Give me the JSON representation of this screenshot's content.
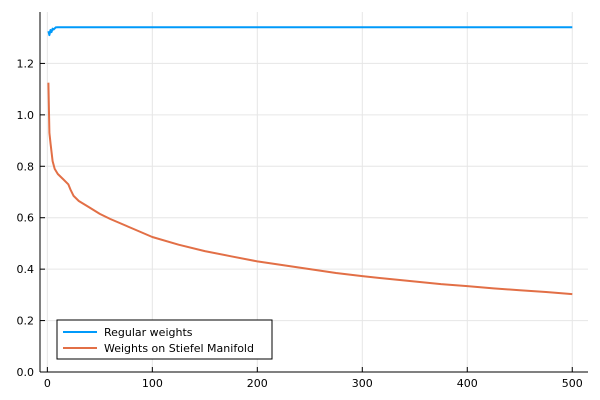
{
  "chart_data": {
    "type": "line",
    "title": "",
    "xlabel": "",
    "ylabel": "",
    "xlim": [
      -7,
      515
    ],
    "ylim": [
      0,
      1.4
    ],
    "xticks": [
      0,
      100,
      200,
      300,
      400,
      500
    ],
    "yticks": [
      0.0,
      0.2,
      0.4,
      0.6,
      0.8,
      1.0,
      1.2
    ],
    "xtick_labels": [
      "0",
      "100",
      "200",
      "300",
      "400",
      "500"
    ],
    "ytick_labels": [
      "0.0",
      "0.2",
      "0.4",
      "0.6",
      "0.8",
      "1.0",
      "1.2"
    ],
    "grid": true,
    "legend_position": "bottom-left",
    "series": [
      {
        "name": "Regular weights",
        "color": "#009AFA",
        "x": [
          1,
          2,
          3,
          4,
          5,
          6,
          8,
          10,
          20,
          50,
          100,
          200,
          300,
          400,
          500
        ],
        "y": [
          1.325,
          1.31,
          1.33,
          1.322,
          1.335,
          1.332,
          1.34,
          1.341,
          1.341,
          1.341,
          1.341,
          1.341,
          1.341,
          1.341,
          1.341
        ]
      },
      {
        "name": "Weights on Stiefel Manifold",
        "color": "#E26F46",
        "x": [
          1,
          2,
          3,
          5,
          7,
          10,
          15,
          20,
          22,
          25,
          30,
          40,
          50,
          60,
          80,
          100,
          125,
          150,
          175,
          200,
          225,
          250,
          275,
          300,
          325,
          350,
          375,
          400,
          425,
          450,
          475,
          500
        ],
        "y": [
          1.125,
          0.93,
          0.89,
          0.82,
          0.79,
          0.77,
          0.75,
          0.73,
          0.71,
          0.685,
          0.665,
          0.64,
          0.615,
          0.595,
          0.56,
          0.525,
          0.495,
          0.47,
          0.45,
          0.43,
          0.415,
          0.4,
          0.385,
          0.373,
          0.362,
          0.352,
          0.342,
          0.334,
          0.325,
          0.318,
          0.311,
          0.303
        ]
      }
    ]
  }
}
